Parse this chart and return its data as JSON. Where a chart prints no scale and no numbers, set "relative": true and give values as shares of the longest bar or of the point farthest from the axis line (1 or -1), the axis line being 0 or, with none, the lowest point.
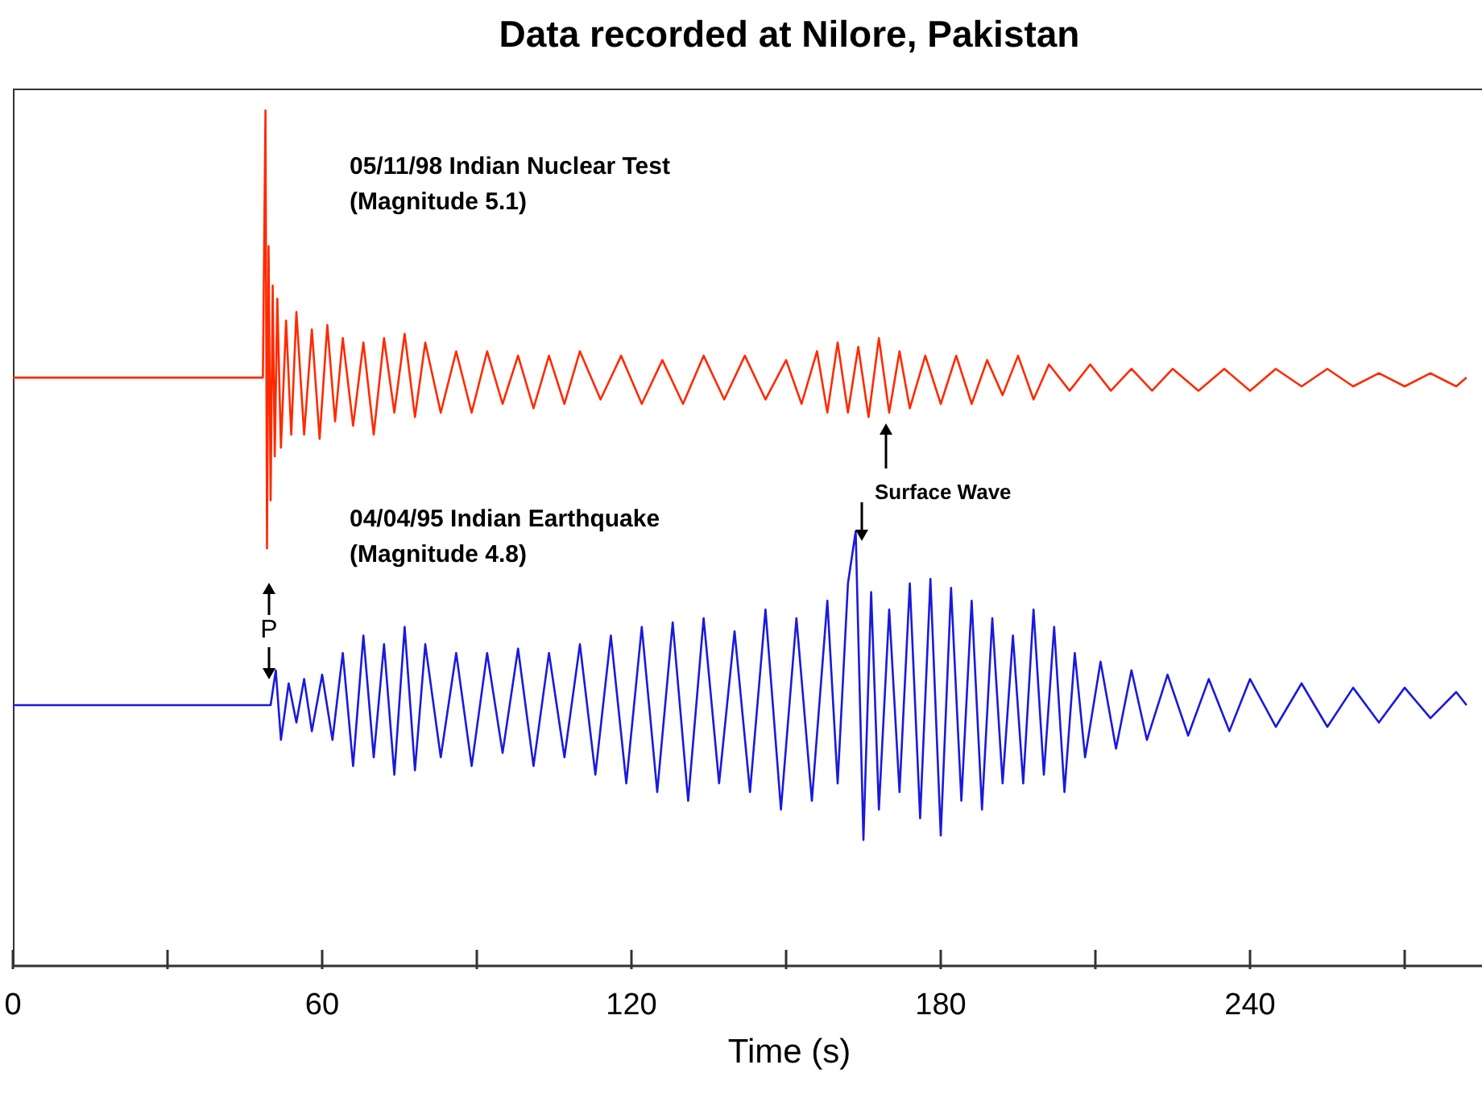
{
  "chart_data": [
    {
      "type": "line",
      "title": "Data recorded at Nilore, Pakistan",
      "relative": true,
      "xlim": [
        0,
        285
      ],
      "tick_labels": false,
      "series": [
        {
          "name": "05/11/98 Indian Nuclear Test\n(Magnitude 5.1)",
          "color": "#ff2a00",
          "x": [
            0,
            10,
            20,
            30,
            40,
            48.5,
            49,
            49.3,
            49.6,
            50,
            50.4,
            50.8,
            51.3,
            52,
            53,
            54,
            55,
            56.5,
            58,
            59.5,
            61,
            62.5,
            64,
            66,
            68,
            70,
            72,
            74,
            76,
            78,
            80,
            83,
            86,
            89,
            92,
            95,
            98,
            101,
            104,
            107,
            110,
            114,
            118,
            122,
            126,
            130,
            134,
            138,
            142,
            146,
            150,
            153,
            156,
            158,
            160,
            162,
            164,
            166,
            168,
            170,
            172,
            174,
            177,
            180,
            183,
            186,
            189,
            192,
            195,
            198,
            201,
            205,
            209,
            213,
            217,
            221,
            225,
            230,
            235,
            240,
            245,
            250,
            255,
            260,
            265,
            270,
            275,
            280,
            282
          ],
          "values": [
            0.39,
            0.39,
            0.39,
            0.39,
            0.39,
            0.39,
            1,
            0,
            0.69,
            0.11,
            0.6,
            0.21,
            0.57,
            0.23,
            0.52,
            0.26,
            0.54,
            0.26,
            0.5,
            0.25,
            0.51,
            0.29,
            0.48,
            0.28,
            0.47,
            0.26,
            0.48,
            0.31,
            0.49,
            0.3,
            0.47,
            0.31,
            0.45,
            0.31,
            0.45,
            0.33,
            0.44,
            0.32,
            0.44,
            0.33,
            0.45,
            0.34,
            0.44,
            0.33,
            0.43,
            0.33,
            0.44,
            0.34,
            0.44,
            0.34,
            0.43,
            0.33,
            0.45,
            0.31,
            0.47,
            0.31,
            0.46,
            0.3,
            0.48,
            0.31,
            0.45,
            0.32,
            0.44,
            0.33,
            0.44,
            0.33,
            0.43,
            0.35,
            0.44,
            0.34,
            0.42,
            0.36,
            0.42,
            0.36,
            0.41,
            0.36,
            0.41,
            0.36,
            0.41,
            0.36,
            0.41,
            0.37,
            0.41,
            0.37,
            0.4,
            0.37,
            0.4,
            0.37,
            0.39
          ]
        }
      ]
    },
    {
      "type": "line",
      "relative": true,
      "xlabel": "Time (s)",
      "xlim": [
        0,
        285
      ],
      "xticks": [
        0,
        {
          "value": 30,
          "label": null
        },
        60,
        {
          "value": 90,
          "label": null
        },
        120,
        {
          "value": 150,
          "label": null
        },
        180,
        {
          "value": 210,
          "label": null
        },
        240,
        {
          "value": 270,
          "label": null
        }
      ],
      "tick_labels": "x",
      "annotations": [
        "P",
        "Surface Wave"
      ],
      "series": [
        {
          "name": "04/04/95 Indian Earthquake\n(Magnitude 4.8)",
          "color": "#1a1adc",
          "x": [
            0,
            10,
            20,
            30,
            40,
            50,
            51,
            52,
            53.5,
            55,
            56.5,
            58,
            60,
            62,
            64,
            66,
            68,
            70,
            72,
            74,
            76,
            78,
            80,
            83,
            86,
            89,
            92,
            95,
            98,
            101,
            104,
            107,
            110,
            113,
            116,
            119,
            122,
            125,
            128,
            131,
            134,
            137,
            140,
            143,
            146,
            149,
            152,
            155,
            158,
            160,
            162,
            163.5,
            165,
            166.5,
            168,
            170,
            172,
            174,
            176,
            178,
            180,
            182,
            184,
            186,
            188,
            190,
            192,
            194,
            196,
            198,
            200,
            202,
            204,
            206,
            208,
            211,
            214,
            217,
            220,
            224,
            228,
            232,
            236,
            240,
            245,
            250,
            255,
            260,
            265,
            270,
            275,
            280,
            282
          ],
          "values": [
            0.6,
            0.6,
            0.6,
            0.6,
            0.6,
            0.6,
            0.68,
            0.52,
            0.65,
            0.56,
            0.66,
            0.54,
            0.67,
            0.52,
            0.72,
            0.46,
            0.76,
            0.48,
            0.74,
            0.44,
            0.78,
            0.45,
            0.74,
            0.48,
            0.72,
            0.46,
            0.72,
            0.49,
            0.73,
            0.46,
            0.72,
            0.48,
            0.74,
            0.44,
            0.76,
            0.42,
            0.78,
            0.4,
            0.79,
            0.38,
            0.8,
            0.42,
            0.77,
            0.4,
            0.82,
            0.36,
            0.8,
            0.38,
            0.84,
            0.42,
            0.88,
            1,
            0.29,
            0.86,
            0.36,
            0.82,
            0.4,
            0.88,
            0.34,
            0.89,
            0.3,
            0.87,
            0.38,
            0.84,
            0.36,
            0.8,
            0.42,
            0.76,
            0.42,
            0.82,
            0.44,
            0.78,
            0.4,
            0.72,
            0.48,
            0.7,
            0.5,
            0.68,
            0.52,
            0.67,
            0.53,
            0.66,
            0.54,
            0.66,
            0.55,
            0.65,
            0.55,
            0.64,
            0.56,
            0.64,
            0.57,
            0.63,
            0.6
          ]
        }
      ]
    }
  ]
}
